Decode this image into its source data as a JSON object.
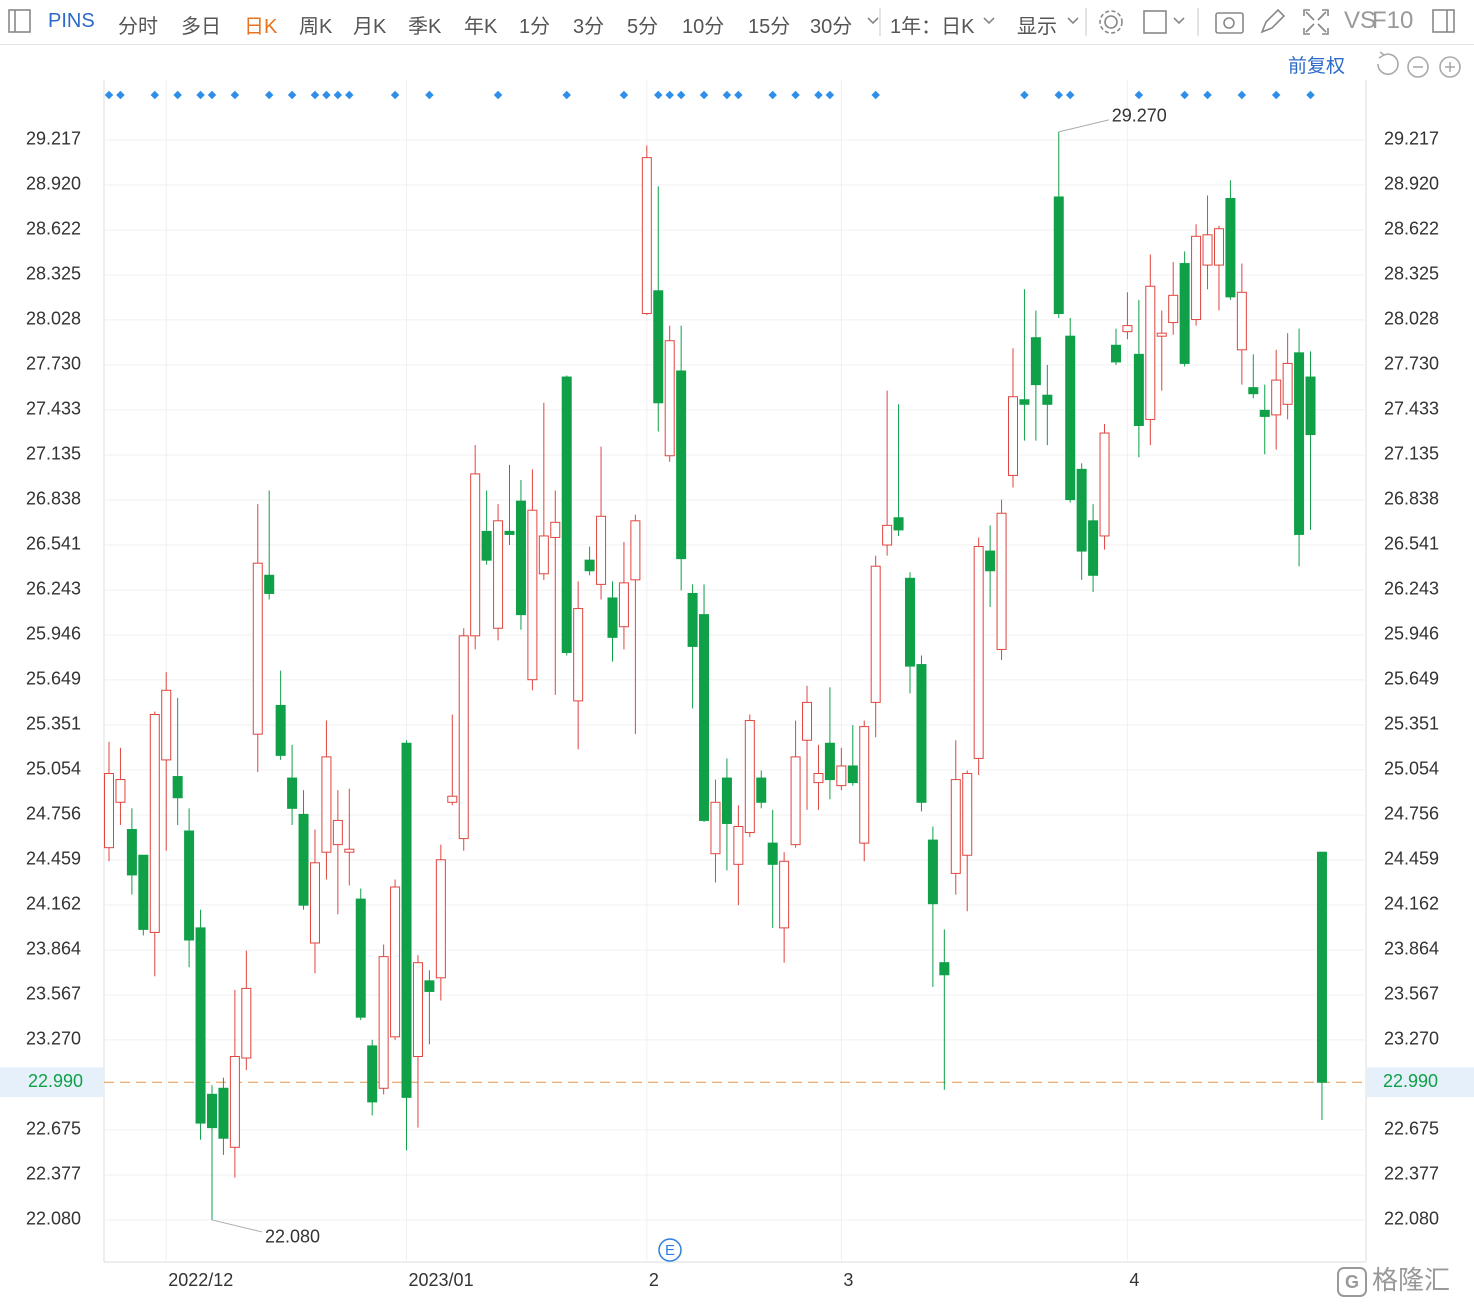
{
  "toolbar": {
    "symbol": "PINS",
    "tabs": [
      "分时",
      "多日",
      "日K",
      "周K",
      "月K",
      "季K",
      "年K",
      "1分",
      "3分",
      "5分",
      "10分",
      "15分",
      "30分"
    ],
    "active_tab_index": 2,
    "period": "1年：日K",
    "display": "显示",
    "vs": "VS",
    "f10": "F10",
    "adjust": "前复权"
  },
  "watermark": "格隆汇",
  "chart_data": {
    "type": "candlestick",
    "categories": [
      null,
      null,
      null,
      null,
      null,
      "2022/12",
      null,
      null,
      null,
      null,
      null,
      null,
      null,
      null,
      null,
      null,
      null,
      null,
      null,
      null,
      null,
      null,
      null,
      null,
      null,
      null,
      "2023/01",
      null,
      null,
      null,
      null,
      null,
      null,
      null,
      null,
      null,
      null,
      null,
      null,
      null,
      null,
      null,
      null,
      null,
      null,
      null,
      null,
      "2",
      null,
      null,
      null,
      null,
      null,
      null,
      null,
      null,
      null,
      null,
      null,
      null,
      null,
      null,
      null,
      null,
      "3",
      null,
      null,
      null,
      null,
      null,
      null,
      null,
      null,
      null,
      null,
      null,
      null,
      null,
      null,
      null,
      null,
      null,
      null,
      null,
      null,
      null,
      null,
      null,
      null,
      "4",
      null,
      null,
      null,
      null,
      null,
      null,
      null,
      null,
      null,
      null,
      null,
      null,
      null,
      null,
      null,
      null,
      null
    ],
    "open": [
      24.54,
      24.84,
      24.66,
      24.49,
      23.98,
      25.12,
      25.01,
      24.65,
      24.01,
      22.91,
      22.95,
      22.56,
      23.15,
      25.29,
      26.34,
      25.48,
      25.0,
      24.76,
      23.91,
      24.51,
      24.56,
      24.51,
      24.2,
      23.23,
      22.95,
      23.29,
      25.23,
      23.16,
      23.66,
      23.68,
      24.84,
      24.6,
      25.94,
      26.63,
      25.99,
      26.63,
      26.83,
      25.65,
      26.35,
      26.59,
      27.65,
      25.51,
      26.44,
      26.28,
      26.19,
      26.0,
      26.31,
      28.07,
      28.22,
      27.13,
      27.69,
      26.22,
      26.08,
      24.5,
      25.0,
      24.43,
      24.64,
      25.0,
      24.57,
      24.01,
      24.56,
      25.25,
      24.97,
      25.23,
      24.95,
      25.08,
      24.57,
      25.5,
      26.54,
      26.72,
      26.32,
      25.75,
      24.59,
      23.78,
      24.37,
      24.49,
      25.13,
      26.5,
      25.85,
      27.0,
      27.5,
      27.91,
      27.53,
      28.84,
      27.92,
      27.04,
      26.7,
      26.6,
      27.86,
      27.95,
      27.8,
      27.37,
      27.92,
      28.01,
      28.4,
      28.03,
      28.39,
      28.39,
      28.83,
      27.83,
      27.58,
      27.43,
      27.4,
      27.47,
      27.81,
      27.65,
      24.51
    ],
    "high": [
      25.24,
      25.2,
      24.8,
      24.49,
      25.44,
      25.7,
      25.53,
      24.8,
      24.13,
      22.97,
      23.02,
      23.6,
      23.86,
      26.81,
      26.9,
      25.71,
      25.22,
      24.92,
      24.66,
      25.38,
      24.92,
      24.93,
      24.27,
      23.27,
      23.9,
      24.33,
      25.25,
      23.83,
      23.73,
      24.56,
      25.42,
      25.99,
      27.2,
      26.9,
      26.81,
      27.07,
      26.97,
      27.04,
      27.48,
      26.9,
      27.66,
      26.3,
      26.53,
      27.19,
      26.3,
      26.56,
      26.74,
      29.18,
      28.91,
      27.99,
      27.99,
      26.28,
      26.28,
      24.99,
      25.13,
      24.82,
      25.42,
      25.05,
      24.79,
      24.51,
      25.38,
      25.61,
      25.22,
      25.6,
      25.2,
      25.35,
      25.38,
      26.47,
      27.56,
      27.47,
      26.36,
      25.81,
      24.68,
      24.0,
      25.25,
      25.05,
      26.59,
      26.67,
      26.84,
      27.84,
      28.23,
      28.09,
      27.73,
      29.27,
      28.04,
      27.08,
      26.81,
      27.34,
      27.97,
      28.21,
      28.16,
      28.46,
      28.09,
      28.41,
      28.48,
      28.66,
      28.85,
      28.65,
      28.95,
      28.4,
      27.8,
      27.6,
      27.83,
      27.94,
      27.97,
      27.82,
      24.51
    ],
    "low": [
      24.45,
      24.69,
      24.23,
      23.96,
      23.69,
      24.52,
      24.69,
      23.75,
      22.61,
      22.08,
      22.51,
      22.36,
      23.07,
      25.04,
      26.18,
      25.12,
      24.69,
      24.13,
      23.71,
      24.33,
      24.1,
      24.29,
      23.4,
      22.77,
      22.91,
      23.27,
      22.54,
      22.69,
      23.24,
      23.53,
      24.82,
      24.52,
      25.85,
      26.41,
      25.91,
      26.54,
      25.98,
      25.58,
      26.31,
      25.55,
      25.81,
      25.19,
      26.34,
      26.18,
      25.77,
      25.85,
      25.29,
      28.06,
      27.29,
      27.09,
      26.24,
      25.46,
      24.71,
      24.31,
      24.39,
      24.16,
      24.61,
      24.8,
      24.01,
      23.78,
      24.54,
      24.79,
      24.79,
      24.86,
      24.92,
      24.95,
      24.45,
      25.27,
      26.47,
      26.6,
      25.56,
      24.78,
      23.62,
      22.94,
      24.23,
      24.12,
      25.02,
      26.13,
      25.78,
      26.92,
      27.23,
      27.23,
      27.2,
      28.04,
      26.82,
      26.31,
      26.23,
      26.51,
      27.73,
      27.9,
      27.12,
      27.2,
      27.56,
      27.93,
      27.72,
      27.99,
      28.23,
      28.09,
      28.16,
      27.6,
      27.51,
      27.14,
      27.17,
      27.37,
      26.4,
      26.64,
      22.74
    ],
    "close": [
      25.03,
      24.99,
      24.36,
      24.0,
      25.42,
      25.58,
      24.87,
      23.93,
      22.72,
      22.69,
      22.62,
      23.16,
      23.61,
      26.42,
      26.22,
      25.15,
      24.8,
      24.16,
      24.44,
      25.14,
      24.72,
      24.53,
      23.42,
      22.86,
      23.82,
      24.28,
      22.89,
      23.78,
      23.59,
      24.46,
      24.88,
      25.94,
      27.01,
      26.44,
      26.7,
      26.61,
      26.08,
      26.77,
      26.6,
      26.69,
      25.83,
      26.12,
      26.37,
      26.73,
      25.93,
      26.29,
      26.7,
      29.1,
      27.48,
      27.89,
      26.45,
      25.87,
      24.72,
      24.84,
      24.7,
      24.68,
      25.38,
      24.84,
      24.43,
      24.45,
      25.14,
      25.5,
      25.03,
      24.99,
      25.08,
      24.97,
      25.34,
      26.4,
      26.67,
      26.64,
      25.74,
      24.84,
      24.17,
      23.7,
      24.99,
      25.03,
      26.53,
      26.37,
      26.75,
      27.52,
      27.47,
      27.6,
      27.47,
      28.07,
      26.84,
      26.5,
      26.34,
      27.28,
      27.75,
      27.99,
      27.33,
      28.25,
      27.94,
      28.19,
      27.74,
      28.58,
      28.59,
      28.63,
      28.18,
      28.21,
      27.54,
      27.39,
      27.63,
      27.74,
      26.61,
      27.27,
      22.99
    ],
    "up_color": "#e0453f",
    "down_color": "#0fa048",
    "ylim": [
      21.802,
      29.613
    ],
    "yticks": [
      29.217,
      {
        "value": 28.92,
        "label": "28.920"
      },
      28.622,
      28.325,
      28.028,
      {
        "value": 27.73,
        "label": "27.730"
      },
      27.433,
      27.135,
      26.838,
      26.541,
      26.243,
      25.946,
      25.649,
      25.351,
      25.054,
      24.756,
      24.459,
      24.162,
      23.864,
      23.567,
      {
        "value": 23.27,
        "label": "23.270"
      },
      22.675,
      22.377,
      {
        "value": 22.08,
        "label": "22.080"
      }
    ],
    "grid": true,
    "last_price": {
      "value": 22.99,
      "label": "22.990"
    },
    "max_label": "29.270",
    "min_label": "22.080",
    "event_marker": "E"
  }
}
